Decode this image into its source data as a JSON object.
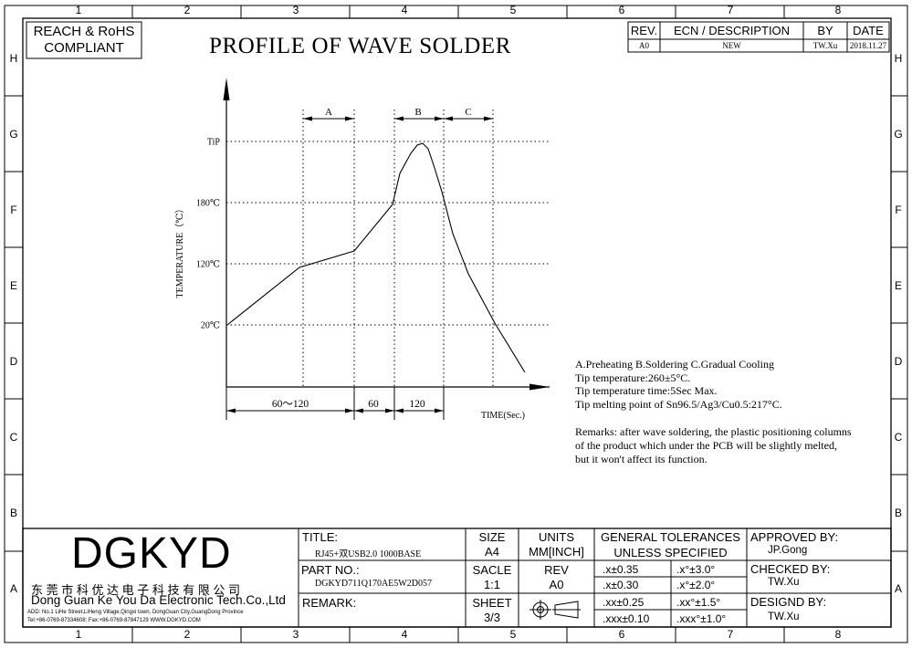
{
  "compliance": [
    "REACH & RoHS",
    "COMPLIANT"
  ],
  "title": "PROFILE OF WAVE SOLDER",
  "border": {
    "columns": [
      "1",
      "2",
      "3",
      "4",
      "5",
      "6",
      "7",
      "8"
    ],
    "rows": [
      "H",
      "G",
      "F",
      "E",
      "D",
      "C",
      "B",
      "A"
    ]
  },
  "revision_table": {
    "headers": {
      "rev": "REV.",
      "ecn": "ECN / DESCRIPTION",
      "by": "BY",
      "date": "DATE"
    },
    "row": {
      "rev": "A0",
      "ecn": "NEW",
      "by": "TW.Xu",
      "date": "2018.11.27"
    }
  },
  "chart_data": {
    "type": "line",
    "ylabel": "TEMPERATURE（℃）",
    "xlabel": "TIME(Sec.)",
    "y_ticks": [
      "TiP",
      "180℃",
      "120℃",
      "20℃"
    ],
    "zones": [
      "A",
      "B",
      "C"
    ],
    "x_dims": [
      "60～120",
      "60",
      "120"
    ]
  },
  "notes": [
    "A.Preheating  B.Soldering  C.Gradual Cooling",
    "Tip temperature:260±5°C.",
    "Tip temperature time:5Sec Max.",
    "Tip melting point of Sn96.5/Ag3/Cu0.5:217°C."
  ],
  "remarks": [
    "Remarks: after wave soldering, the plastic positioning columns",
    "of the product  which under the PCB will be slightly melted,",
    "but it won't affect its function."
  ],
  "title_block": {
    "logo": "DGKYD",
    "company_cn": "东 莞 市 科 优 达 电 子 科 技 有 限 公 司",
    "company_en": "Dong Guan Ke You Da Electronic Tech.Co.,Ltd",
    "address": "ADD: No.1 LiHe Street,LiHeng Village,Qingxi town, DongGuan City,GuangDong Province",
    "contact": "Tel:+86-0769-87334608; Fax:+86-0769-87847129  WWW.DGKYD.COM",
    "title_label": "TITLE:",
    "title_value": "RJ45+双USB2.0 1000BASE",
    "part_label": "PART NO.:",
    "part_value": "DGKYD711Q170AE5W2D057",
    "remark_label": "REMARK:",
    "size_label": "SIZE",
    "size_value": "A4",
    "units_label": "UNITS",
    "units_value": "MM[INCH]",
    "scale_label": "SACLE",
    "scale_value": "1:1",
    "rev_label": "REV",
    "rev_value": "A0",
    "sheet_label": "SHEET",
    "sheet_value": "3/3",
    "tol_title": [
      "GENERAL TOLERANCES",
      "UNLESS SPECIFIED"
    ],
    "tolerances": [
      [
        ".x±0.35",
        ".x°±3.0°"
      ],
      [
        ".x±0.30",
        ".x°±2.0°"
      ],
      [
        ".xx±0.25",
        ".xx°±1.5°"
      ],
      [
        ".xxx±0.10",
        ".xxx°±1.0°"
      ]
    ],
    "approved_label": "APPROVED BY:",
    "approved_value": "JP.Gong",
    "checked_label": "CHECKED BY:",
    "checked_value": "TW.Xu",
    "designed_label": "DESIGND BY:",
    "designed_value": "TW.Xu"
  }
}
